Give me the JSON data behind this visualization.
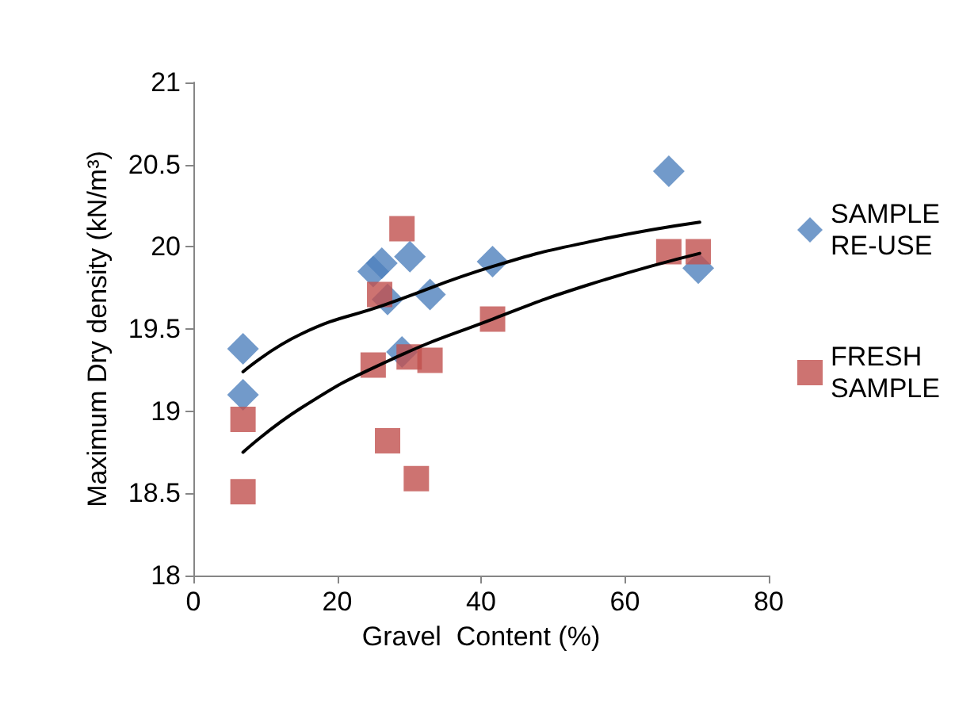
{
  "chart_data": {
    "type": "scatter",
    "xlabel": "Gravel  Content (%)",
    "ylabel": "Maximum Dry density (kN/m³)",
    "xlim": [
      0,
      80
    ],
    "xticks": [
      0,
      20,
      40,
      60,
      80
    ],
    "ylim": [
      18,
      21
    ],
    "yticks": [
      18,
      18.5,
      19,
      19.5,
      20,
      20.5,
      21
    ],
    "grid": false,
    "legend": "right",
    "series": [
      {
        "name": "SAMPLE RE-USE",
        "color": "#4f81bd",
        "marker": "diamond",
        "x": [
          6.9,
          6.9,
          25.0,
          26.2,
          30.1,
          27.0,
          32.9,
          29.0,
          41.6,
          66.1,
          70.2
        ],
        "values": [
          19.38,
          19.1,
          19.85,
          19.9,
          19.94,
          19.68,
          19.71,
          19.36,
          19.91,
          20.46,
          19.87
        ]
      },
      {
        "name": "FRESH SAMPLE",
        "color": "#c0504d",
        "marker": "square",
        "x": [
          29.0,
          25.9,
          41.6,
          25.0,
          30.0,
          32.9,
          6.9,
          6.9,
          27.0,
          31.0,
          66.1,
          70.2
        ],
        "values": [
          20.11,
          19.71,
          19.56,
          19.28,
          19.33,
          19.31,
          18.95,
          18.51,
          18.82,
          18.59,
          19.97,
          19.97
        ]
      },
      {
        "type": "line",
        "color": "#000000",
        "marker": "none",
        "x": [
          6.9,
          15,
          26.8,
          41.6,
          55,
          70.4
        ],
        "values": [
          19.24,
          19.47,
          19.65,
          19.88,
          20.03,
          20.15
        ]
      },
      {
        "type": "line",
        "color": "#000000",
        "marker": "none",
        "x": [
          6.9,
          15,
          26.8,
          41.6,
          55,
          70.4
        ],
        "values": [
          18.75,
          19.02,
          19.3,
          19.56,
          19.77,
          19.96
        ]
      }
    ]
  }
}
